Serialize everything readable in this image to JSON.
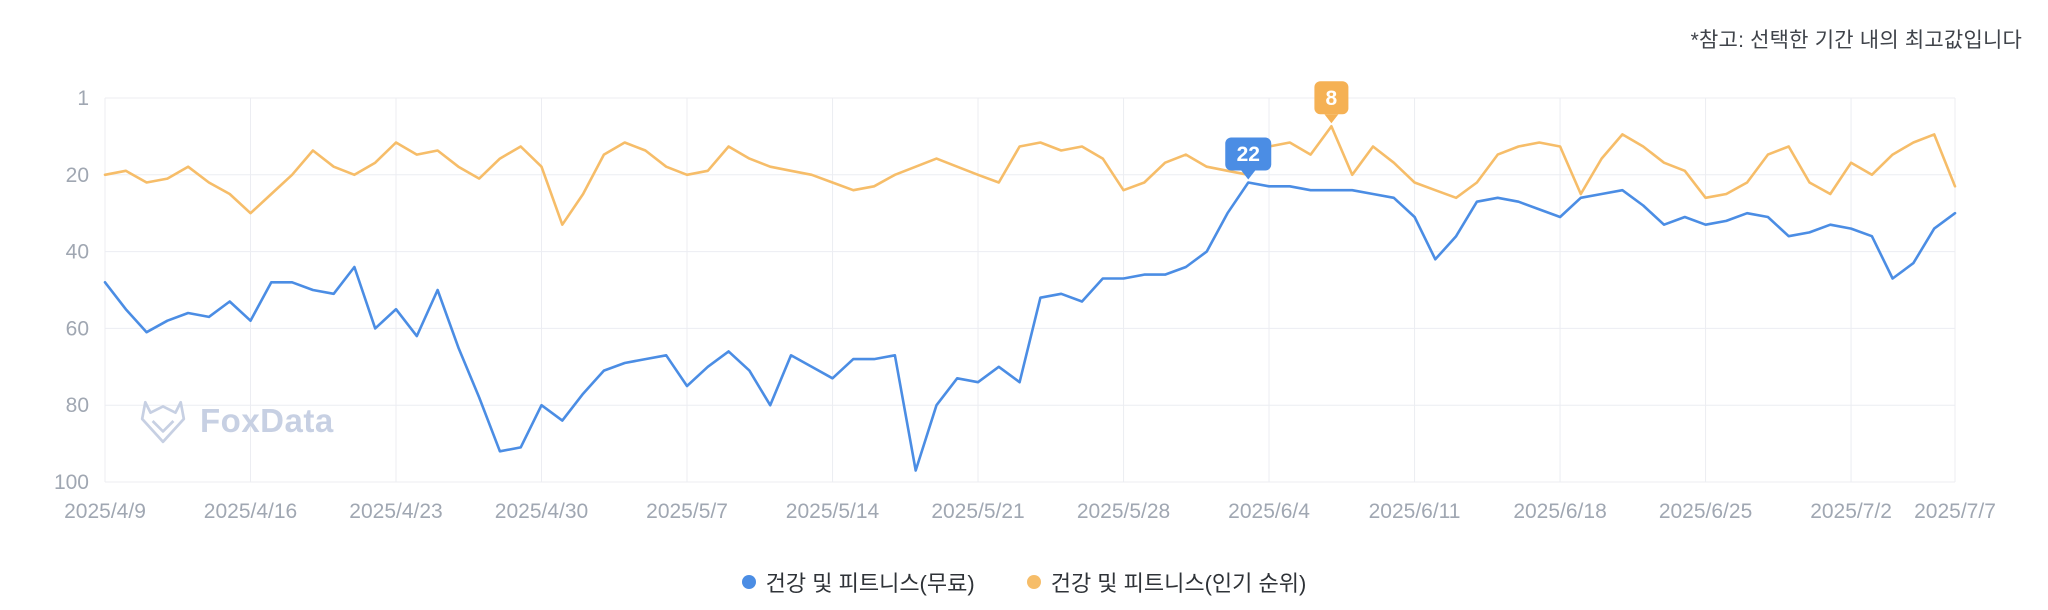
{
  "note": "*참고: 선택한 기간 내의 최고값입니다",
  "watermark": {
    "text": "FoxData"
  },
  "legend": [
    {
      "label": "건강 및 피트니스(무료)",
      "color": "#4b8de4"
    },
    {
      "label": "건강 및 피트니스(인기 순위)",
      "color": "#f6bd69"
    }
  ],
  "chart_data": {
    "type": "line",
    "title": "",
    "xlabel": "",
    "ylabel": "",
    "y_axis": {
      "ticks": [
        1,
        20,
        40,
        60,
        80,
        100
      ],
      "inverted": true
    },
    "x_ticks": {
      "labels": [
        "2025/4/9",
        "2025/4/16",
        "2025/4/23",
        "2025/4/30",
        "2025/5/7",
        "2025/5/14",
        "2025/5/21",
        "2025/5/28",
        "2025/6/4",
        "2025/6/11",
        "2025/6/18",
        "2025/6/25",
        "2025/7/2",
        "2025/7/7"
      ],
      "indices": [
        0,
        7,
        14,
        21,
        28,
        35,
        42,
        49,
        56,
        63,
        70,
        77,
        84,
        89
      ]
    },
    "n_points": 90,
    "grid_color": "#ecedf2",
    "axis_label_color": "#a0a7b2",
    "series": [
      {
        "name": "건강 및 피트니스(무료)",
        "color": "#4b8de4",
        "values": [
          48,
          55,
          61,
          58,
          56,
          57,
          53,
          58,
          48,
          48,
          50,
          51,
          44,
          60,
          55,
          62,
          50,
          65,
          78,
          92,
          91,
          80,
          84,
          77,
          71,
          69,
          68,
          67,
          75,
          70,
          66,
          71,
          80,
          67,
          70,
          73,
          68,
          68,
          67,
          97,
          80,
          73,
          74,
          70,
          74,
          52,
          51,
          53,
          47,
          47,
          46,
          46,
          44,
          40,
          30,
          22,
          23,
          23,
          24,
          24,
          24,
          25,
          26,
          31,
          42,
          36,
          27,
          26,
          27,
          29,
          31,
          26,
          25,
          24,
          28,
          33,
          31,
          33,
          32,
          30,
          31,
          36,
          35,
          33,
          34,
          36,
          47,
          43,
          34,
          30
        ]
      },
      {
        "name": "건강 및 피트니스(인기 순위)",
        "color": "#f6bd69",
        "values": [
          20,
          19,
          22,
          21,
          18,
          22,
          25,
          30,
          25,
          20,
          14,
          18,
          20,
          17,
          12,
          15,
          14,
          18,
          21,
          16,
          13,
          18,
          33,
          25,
          15,
          12,
          14,
          18,
          20,
          19,
          13,
          16,
          18,
          19,
          20,
          22,
          24,
          23,
          20,
          18,
          16,
          18,
          20,
          22,
          13,
          12,
          14,
          13,
          16,
          24,
          22,
          17,
          15,
          18,
          19,
          20,
          13,
          12,
          15,
          8,
          20,
          13,
          17,
          22,
          24,
          26,
          22,
          15,
          13,
          12,
          13,
          25,
          16,
          10,
          13,
          17,
          19,
          26,
          25,
          22,
          15,
          13,
          22,
          25,
          17,
          20,
          15,
          12,
          10,
          23
        ]
      }
    ],
    "markers": [
      {
        "series": 0,
        "index": 55,
        "value": 22,
        "label": "22",
        "color": "#4b8de4"
      },
      {
        "series": 1,
        "index": 59,
        "value": 8,
        "label": "8",
        "color": "#f5b154"
      }
    ]
  }
}
